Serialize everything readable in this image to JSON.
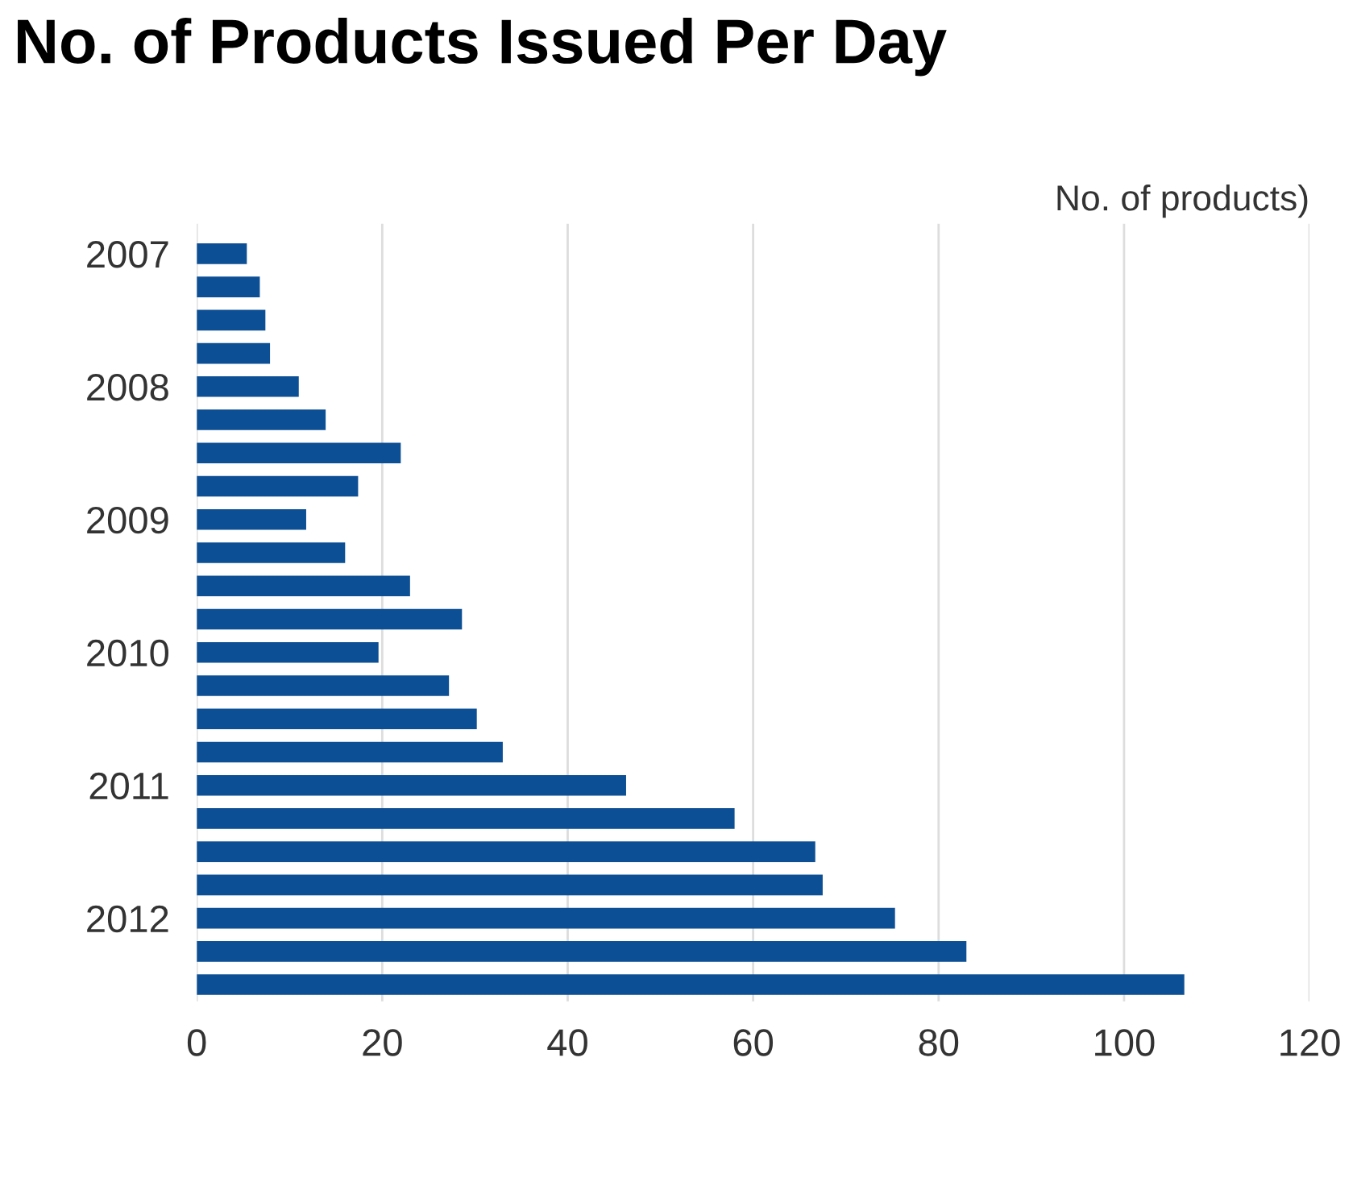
{
  "chart_data": {
    "type": "bar",
    "orientation": "horizontal",
    "title": "No. of Products Issued Per Day",
    "xlabel": "No. of products)",
    "categories": [
      "2007",
      null,
      null,
      null,
      "2008",
      null,
      null,
      null,
      "2009",
      null,
      null,
      null,
      "2010",
      null,
      null,
      null,
      "2011",
      null,
      null,
      null,
      "2012",
      null,
      null
    ],
    "values": [
      5.4,
      6.8,
      7.4,
      7.9,
      11,
      13.9,
      22,
      17.4,
      11.8,
      16,
      23,
      28.6,
      19.6,
      27.2,
      30.2,
      33,
      46.3,
      58,
      66.7,
      67.5,
      75.3,
      83,
      106.5
    ],
    "color": "#0d4f94",
    "xlim": [
      0,
      120
    ],
    "xticks": [
      0,
      20,
      40,
      60,
      80,
      100,
      120
    ],
    "grid": "x"
  }
}
